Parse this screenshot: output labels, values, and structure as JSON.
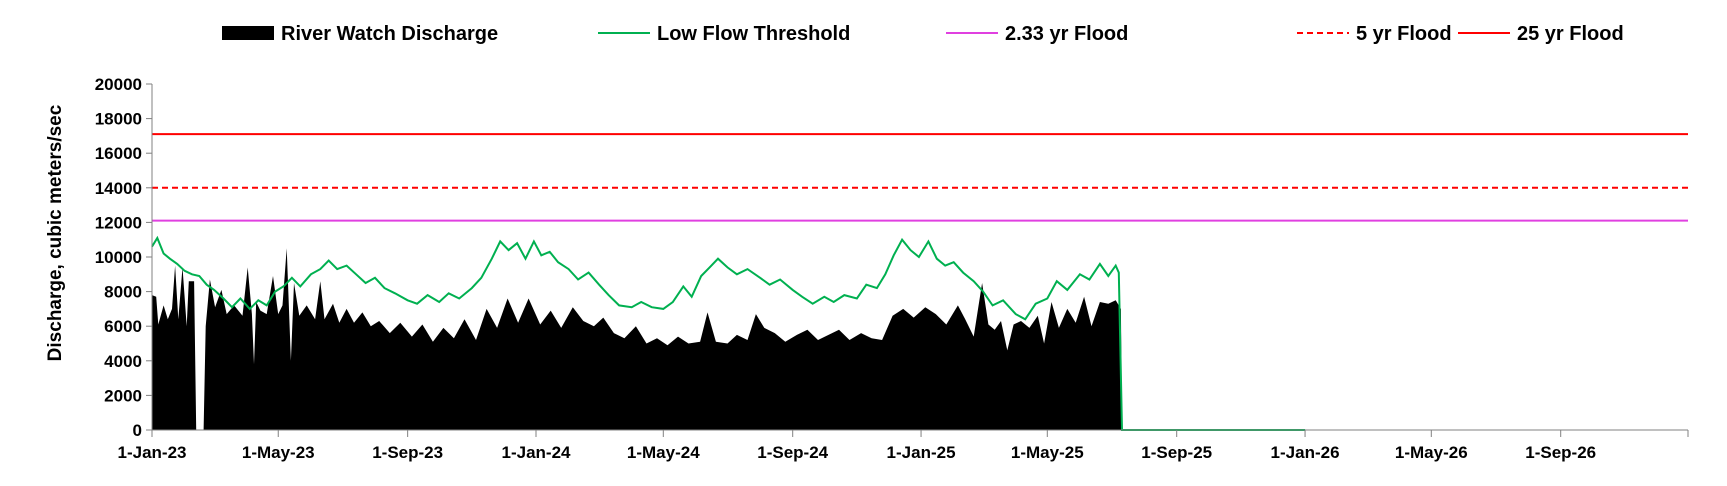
{
  "chart_data": {
    "type": "area",
    "title": "",
    "xlabel": "",
    "ylabel": "Discharge, cubic meters/sec",
    "ylim": [
      0,
      20000
    ],
    "yticks": [
      0,
      2000,
      4000,
      6000,
      8000,
      10000,
      12000,
      14000,
      16000,
      18000,
      20000
    ],
    "xlim": [
      "2023-01-01",
      "2026-12-31"
    ],
    "xticks": [
      {
        "date": "2023-01-01",
        "label": "1-Jan-23"
      },
      {
        "date": "2023-05-01",
        "label": "1-May-23"
      },
      {
        "date": "2023-09-01",
        "label": "1-Sep-23"
      },
      {
        "date": "2024-01-01",
        "label": "1-Jan-24"
      },
      {
        "date": "2024-05-01",
        "label": "1-May-24"
      },
      {
        "date": "2024-09-01",
        "label": "1-Sep-24"
      },
      {
        "date": "2025-01-01",
        "label": "1-Jan-25"
      },
      {
        "date": "2025-05-01",
        "label": "1-May-25"
      },
      {
        "date": "2025-09-01",
        "label": "1-Sep-25"
      },
      {
        "date": "2026-01-01",
        "label": "1-Jan-26"
      },
      {
        "date": "2026-05-01",
        "label": "1-May-26"
      },
      {
        "date": "2026-09-01",
        "label": "1-Sep-26"
      }
    ],
    "grid": false,
    "legend_position": "top",
    "series": [
      {
        "name": "River Watch Discharge",
        "kind": "area",
        "color": "#000000",
        "points": [
          [
            "2023-01-01",
            7800
          ],
          [
            "2023-01-05",
            7700
          ],
          [
            "2023-01-07",
            6100
          ],
          [
            "2023-01-12",
            7200
          ],
          [
            "2023-01-16",
            6400
          ],
          [
            "2023-01-20",
            7000
          ],
          [
            "2023-01-23",
            9500
          ],
          [
            "2023-01-26",
            6400
          ],
          [
            "2023-01-30",
            9400
          ],
          [
            "2023-02-03",
            6000
          ],
          [
            "2023-02-05",
            8600
          ],
          [
            "2023-02-10",
            8600
          ],
          [
            "2023-02-12",
            0
          ],
          [
            "2023-02-19",
            0
          ],
          [
            "2023-02-21",
            6000
          ],
          [
            "2023-02-25",
            8700
          ],
          [
            "2023-03-02",
            7100
          ],
          [
            "2023-03-08",
            8100
          ],
          [
            "2023-03-13",
            6700
          ],
          [
            "2023-03-20",
            7200
          ],
          [
            "2023-03-28",
            6600
          ],
          [
            "2023-04-02",
            9400
          ],
          [
            "2023-04-06",
            6700
          ],
          [
            "2023-04-08",
            3800
          ],
          [
            "2023-04-10",
            7400
          ],
          [
            "2023-04-14",
            6900
          ],
          [
            "2023-04-20",
            6700
          ],
          [
            "2023-04-26",
            8900
          ],
          [
            "2023-05-01",
            6700
          ],
          [
            "2023-05-05",
            7200
          ],
          [
            "2023-05-09",
            10500
          ],
          [
            "2023-05-13",
            4000
          ],
          [
            "2023-05-16",
            8500
          ],
          [
            "2023-05-21",
            6600
          ],
          [
            "2023-05-28",
            7200
          ],
          [
            "2023-06-05",
            6400
          ],
          [
            "2023-06-10",
            8600
          ],
          [
            "2023-06-14",
            6400
          ],
          [
            "2023-06-22",
            7300
          ],
          [
            "2023-06-28",
            6200
          ],
          [
            "2023-07-05",
            7000
          ],
          [
            "2023-07-12",
            6200
          ],
          [
            "2023-07-20",
            6800
          ],
          [
            "2023-07-28",
            6000
          ],
          [
            "2023-08-05",
            6300
          ],
          [
            "2023-08-15",
            5600
          ],
          [
            "2023-08-25",
            6200
          ],
          [
            "2023-09-05",
            5400
          ],
          [
            "2023-09-15",
            6100
          ],
          [
            "2023-09-25",
            5100
          ],
          [
            "2023-10-05",
            5900
          ],
          [
            "2023-10-15",
            5300
          ],
          [
            "2023-10-25",
            6400
          ],
          [
            "2023-11-05",
            5200
          ],
          [
            "2023-11-15",
            7000
          ],
          [
            "2023-11-25",
            5900
          ],
          [
            "2023-12-05",
            7600
          ],
          [
            "2023-12-15",
            6200
          ],
          [
            "2023-12-25",
            7600
          ],
          [
            "2024-01-05",
            6100
          ],
          [
            "2024-01-15",
            6900
          ],
          [
            "2024-01-25",
            5900
          ],
          [
            "2024-02-05",
            7100
          ],
          [
            "2024-02-15",
            6300
          ],
          [
            "2024-02-25",
            6000
          ],
          [
            "2024-03-05",
            6500
          ],
          [
            "2024-03-15",
            5600
          ],
          [
            "2024-03-25",
            5300
          ],
          [
            "2024-04-05",
            6000
          ],
          [
            "2024-04-15",
            5000
          ],
          [
            "2024-04-25",
            5300
          ],
          [
            "2024-05-05",
            4900
          ],
          [
            "2024-05-15",
            5400
          ],
          [
            "2024-05-25",
            5000
          ],
          [
            "2024-06-05",
            5100
          ],
          [
            "2024-06-12",
            6800
          ],
          [
            "2024-06-20",
            5100
          ],
          [
            "2024-07-01",
            5000
          ],
          [
            "2024-07-10",
            5500
          ],
          [
            "2024-07-20",
            5200
          ],
          [
            "2024-07-28",
            6700
          ],
          [
            "2024-08-05",
            5900
          ],
          [
            "2024-08-15",
            5600
          ],
          [
            "2024-08-25",
            5100
          ],
          [
            "2024-09-05",
            5500
          ],
          [
            "2024-09-15",
            5800
          ],
          [
            "2024-09-25",
            5200
          ],
          [
            "2024-10-05",
            5500
          ],
          [
            "2024-10-15",
            5800
          ],
          [
            "2024-10-25",
            5200
          ],
          [
            "2024-11-05",
            5600
          ],
          [
            "2024-11-15",
            5300
          ],
          [
            "2024-11-25",
            5200
          ],
          [
            "2024-12-05",
            6600
          ],
          [
            "2024-12-15",
            7000
          ],
          [
            "2024-12-25",
            6500
          ],
          [
            "2025-01-05",
            7100
          ],
          [
            "2025-01-15",
            6700
          ],
          [
            "2025-01-25",
            6100
          ],
          [
            "2025-02-05",
            7200
          ],
          [
            "2025-02-12",
            6400
          ],
          [
            "2025-02-20",
            5400
          ],
          [
            "2025-02-28",
            8500
          ],
          [
            "2025-03-06",
            6100
          ],
          [
            "2025-03-12",
            5800
          ],
          [
            "2025-03-18",
            6300
          ],
          [
            "2025-03-24",
            4600
          ],
          [
            "2025-03-30",
            6100
          ],
          [
            "2025-04-06",
            6300
          ],
          [
            "2025-04-14",
            5900
          ],
          [
            "2025-04-22",
            6600
          ],
          [
            "2025-04-28",
            5000
          ],
          [
            "2025-05-05",
            7400
          ],
          [
            "2025-05-12",
            5900
          ],
          [
            "2025-05-20",
            7000
          ],
          [
            "2025-05-28",
            6200
          ],
          [
            "2025-06-05",
            7700
          ],
          [
            "2025-06-12",
            6000
          ],
          [
            "2025-06-20",
            7400
          ],
          [
            "2025-06-28",
            7300
          ],
          [
            "2025-07-05",
            7500
          ],
          [
            "2025-07-10",
            7000
          ],
          [
            "2025-07-11",
            0
          ]
        ]
      },
      {
        "name": "Low Flow Threshold",
        "kind": "line",
        "color": "#00b050",
        "points": [
          [
            "2023-01-01",
            10600
          ],
          [
            "2023-01-06",
            11100
          ],
          [
            "2023-01-12",
            10200
          ],
          [
            "2023-01-18",
            9900
          ],
          [
            "2023-01-25",
            9600
          ],
          [
            "2023-02-01",
            9200
          ],
          [
            "2023-02-08",
            9000
          ],
          [
            "2023-02-15",
            8900
          ],
          [
            "2023-02-22",
            8400
          ],
          [
            "2023-03-01",
            8100
          ],
          [
            "2023-03-10",
            7600
          ],
          [
            "2023-03-18",
            7100
          ],
          [
            "2023-03-26",
            7600
          ],
          [
            "2023-04-04",
            7000
          ],
          [
            "2023-04-12",
            7500
          ],
          [
            "2023-04-20",
            7200
          ],
          [
            "2023-04-28",
            8000
          ],
          [
            "2023-05-06",
            8300
          ],
          [
            "2023-05-14",
            8800
          ],
          [
            "2023-05-22",
            8300
          ],
          [
            "2023-06-01",
            9000
          ],
          [
            "2023-06-10",
            9300
          ],
          [
            "2023-06-18",
            9800
          ],
          [
            "2023-06-26",
            9300
          ],
          [
            "2023-07-05",
            9500
          ],
          [
            "2023-07-14",
            9000
          ],
          [
            "2023-07-23",
            8500
          ],
          [
            "2023-08-01",
            8800
          ],
          [
            "2023-08-10",
            8200
          ],
          [
            "2023-08-20",
            7900
          ],
          [
            "2023-09-01",
            7500
          ],
          [
            "2023-09-10",
            7300
          ],
          [
            "2023-09-20",
            7800
          ],
          [
            "2023-10-01",
            7400
          ],
          [
            "2023-10-10",
            7900
          ],
          [
            "2023-10-20",
            7600
          ],
          [
            "2023-11-01",
            8200
          ],
          [
            "2023-11-10",
            8800
          ],
          [
            "2023-11-20",
            9900
          ],
          [
            "2023-11-28",
            10900
          ],
          [
            "2023-12-06",
            10400
          ],
          [
            "2023-12-14",
            10800
          ],
          [
            "2023-12-22",
            9900
          ],
          [
            "2023-12-30",
            10900
          ],
          [
            "2024-01-06",
            10100
          ],
          [
            "2024-01-14",
            10300
          ],
          [
            "2024-01-22",
            9700
          ],
          [
            "2024-02-01",
            9300
          ],
          [
            "2024-02-10",
            8700
          ],
          [
            "2024-02-20",
            9100
          ],
          [
            "2024-03-01",
            8400
          ],
          [
            "2024-03-10",
            7800
          ],
          [
            "2024-03-20",
            7200
          ],
          [
            "2024-04-01",
            7100
          ],
          [
            "2024-04-10",
            7400
          ],
          [
            "2024-04-20",
            7100
          ],
          [
            "2024-05-01",
            7000
          ],
          [
            "2024-05-10",
            7400
          ],
          [
            "2024-05-20",
            8300
          ],
          [
            "2024-05-28",
            7700
          ],
          [
            "2024-06-06",
            8900
          ],
          [
            "2024-06-14",
            9400
          ],
          [
            "2024-06-22",
            9900
          ],
          [
            "2024-07-01",
            9400
          ],
          [
            "2024-07-10",
            9000
          ],
          [
            "2024-07-20",
            9300
          ],
          [
            "2024-08-01",
            8800
          ],
          [
            "2024-08-10",
            8400
          ],
          [
            "2024-08-20",
            8700
          ],
          [
            "2024-09-01",
            8100
          ],
          [
            "2024-09-10",
            7700
          ],
          [
            "2024-09-20",
            7300
          ],
          [
            "2024-10-01",
            7700
          ],
          [
            "2024-10-10",
            7400
          ],
          [
            "2024-10-20",
            7800
          ],
          [
            "2024-11-01",
            7600
          ],
          [
            "2024-11-10",
            8400
          ],
          [
            "2024-11-20",
            8200
          ],
          [
            "2024-11-28",
            9000
          ],
          [
            "2024-12-06",
            10100
          ],
          [
            "2024-12-14",
            11000
          ],
          [
            "2024-12-22",
            10400
          ],
          [
            "2024-12-30",
            10000
          ],
          [
            "2025-01-08",
            10900
          ],
          [
            "2025-01-16",
            9900
          ],
          [
            "2025-01-24",
            9500
          ],
          [
            "2025-02-01",
            9700
          ],
          [
            "2025-02-10",
            9100
          ],
          [
            "2025-02-20",
            8600
          ],
          [
            "2025-03-01",
            8000
          ],
          [
            "2025-03-10",
            7200
          ],
          [
            "2025-03-20",
            7500
          ],
          [
            "2025-04-01",
            6700
          ],
          [
            "2025-04-10",
            6400
          ],
          [
            "2025-04-20",
            7300
          ],
          [
            "2025-05-01",
            7600
          ],
          [
            "2025-05-10",
            8600
          ],
          [
            "2025-05-20",
            8100
          ],
          [
            "2025-06-01",
            9000
          ],
          [
            "2025-06-10",
            8700
          ],
          [
            "2025-06-20",
            9600
          ],
          [
            "2025-06-28",
            8900
          ],
          [
            "2025-07-05",
            9500
          ],
          [
            "2025-07-08",
            9100
          ],
          [
            "2025-07-11",
            0
          ],
          [
            "2026-01-01",
            0
          ]
        ]
      },
      {
        "name": "2.33 yr Flood",
        "kind": "hline",
        "color": "#e040e0",
        "dash": false,
        "value": 12100
      },
      {
        "name": "5 yr Flood",
        "kind": "hline",
        "color": "#ff0000",
        "dash": true,
        "value": 14000
      },
      {
        "name": "25 yr Flood",
        "kind": "hline",
        "color": "#ff0000",
        "dash": false,
        "value": 17100
      }
    ]
  }
}
